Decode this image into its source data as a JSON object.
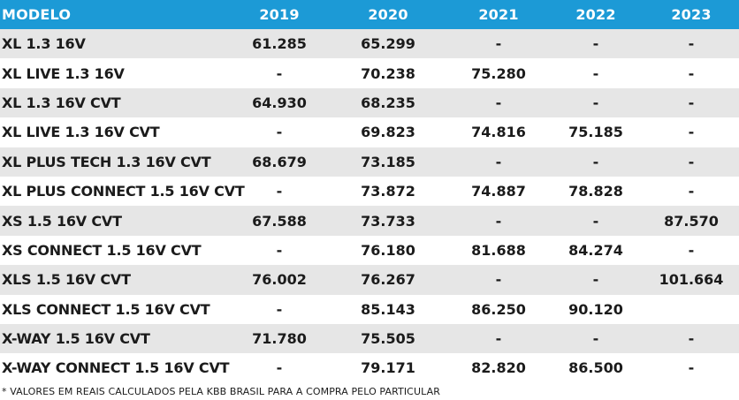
{
  "table": {
    "headers": [
      "MODELO",
      "2019",
      "2020",
      "2021",
      "2022",
      "2023"
    ],
    "rows": [
      [
        "XL 1.3 16V",
        "61.285",
        "65.299",
        "-",
        "-",
        "-"
      ],
      [
        "XL LIVE 1.3 16V",
        "-",
        "70.238",
        "75.280",
        "-",
        "-"
      ],
      [
        "XL 1.3 16V CVT",
        "64.930",
        "68.235",
        "-",
        "-",
        "-"
      ],
      [
        "XL LIVE 1.3 16V CVT",
        "-",
        "69.823",
        "74.816",
        "75.185",
        "-"
      ],
      [
        "XL PLUS TECH 1.3 16V CVT",
        "68.679",
        "73.185",
        "-",
        "-",
        "-"
      ],
      [
        "XL PLUS CONNECT 1.5 16V CVT",
        "-",
        "73.872",
        "74.887",
        "78.828",
        "-"
      ],
      [
        "XS 1.5 16V CVT",
        "67.588",
        "73.733",
        "-",
        "-",
        "87.570"
      ],
      [
        "XS CONNECT 1.5 16V CVT",
        "-",
        "76.180",
        "81.688",
        "84.274",
        "-"
      ],
      [
        "XLS 1.5 16V CVT",
        "76.002",
        "76.267",
        "-",
        "-",
        "101.664"
      ],
      [
        "XLS CONNECT 1.5 16V CVT",
        "-",
        "85.143",
        "86.250",
        "90.120",
        ""
      ],
      [
        "X-WAY 1.5 16V CVT",
        "71.780",
        "75.505",
        "-",
        "-",
        "-"
      ],
      [
        "X-WAY CONNECT 1.5 16V CVT",
        "-",
        "79.171",
        "82.820",
        "86.500",
        "-"
      ]
    ]
  },
  "footnote": "* VALORES EM REAIS CALCULADOS PELA KBB BRASIL PARA A COMPRA PELO PARTICULAR",
  "colors": {
    "header_bg": "#1c9ad6",
    "header_text": "#ffffff",
    "row_shade": "#e6e6e6",
    "text": "#1b1b1b"
  }
}
